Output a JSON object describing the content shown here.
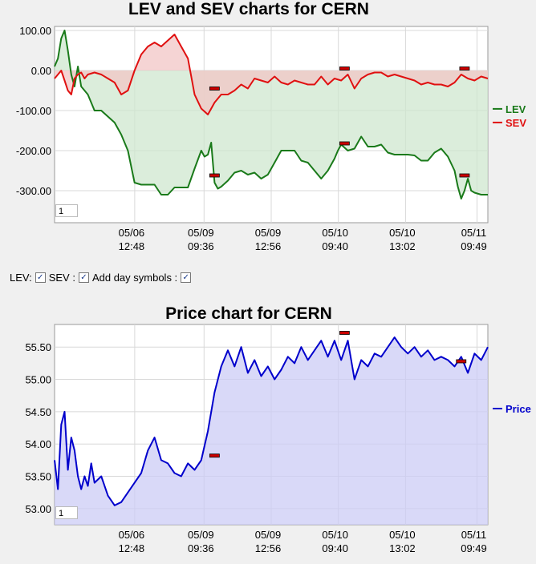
{
  "chart_data": [
    {
      "type": "area",
      "title": "LEV and SEV charts for CERN",
      "yticks": [
        "100.00",
        "0.00",
        "-100.00",
        "-200.00",
        "-300.00"
      ],
      "ylim": [
        -380,
        110
      ],
      "xticks": [
        {
          "date": "05/06",
          "time": "12:48"
        },
        {
          "date": "05/09",
          "time": "09:36"
        },
        {
          "date": "05/09",
          "time": "12:56"
        },
        {
          "date": "05/10",
          "time": "09:40"
        },
        {
          "date": "05/10",
          "time": "13:02"
        },
        {
          "date": "05/11",
          "time": "09:49"
        }
      ],
      "legend_position": "right",
      "series": [
        {
          "name": "LEV",
          "color": "#1a7a1a",
          "fill": "#cfe7cf",
          "points": [
            [
              0,
              10
            ],
            [
              1,
              30
            ],
            [
              2,
              80
            ],
            [
              3,
              100
            ],
            [
              4,
              50
            ],
            [
              5,
              -10
            ],
            [
              6,
              -40
            ],
            [
              7,
              10
            ],
            [
              8,
              -40
            ],
            [
              9,
              -50
            ],
            [
              10,
              -60
            ],
            [
              12,
              -100
            ],
            [
              14,
              -100
            ],
            [
              16,
              -115
            ],
            [
              18,
              -130
            ],
            [
              20,
              -160
            ],
            [
              22,
              -200
            ],
            [
              24,
              -280
            ],
            [
              26,
              -285
            ],
            [
              28,
              -285
            ],
            [
              30,
              -285
            ],
            [
              32,
              -310
            ],
            [
              34,
              -310
            ],
            [
              36,
              -292
            ],
            [
              38,
              -292
            ],
            [
              40,
              -292
            ],
            [
              42,
              -245
            ],
            [
              44,
              -200
            ],
            [
              45,
              -215
            ],
            [
              46,
              -210
            ],
            [
              47,
              -180
            ],
            [
              48,
              -280
            ],
            [
              49,
              -295
            ],
            [
              50,
              -290
            ],
            [
              52,
              -275
            ],
            [
              54,
              -255
            ],
            [
              56,
              -250
            ],
            [
              58,
              -260
            ],
            [
              60,
              -255
            ],
            [
              62,
              -270
            ],
            [
              64,
              -260
            ],
            [
              66,
              -230
            ],
            [
              68,
              -200
            ],
            [
              70,
              -200
            ],
            [
              72,
              -200
            ],
            [
              74,
              -225
            ],
            [
              76,
              -230
            ],
            [
              78,
              -250
            ],
            [
              80,
              -270
            ],
            [
              82,
              -250
            ],
            [
              84,
              -220
            ],
            [
              85,
              -200
            ],
            [
              86,
              -185
            ],
            [
              88,
              -200
            ],
            [
              90,
              -195
            ],
            [
              92,
              -165
            ],
            [
              94,
              -190
            ],
            [
              96,
              -190
            ],
            [
              98,
              -185
            ],
            [
              100,
              -205
            ],
            [
              102,
              -210
            ],
            [
              104,
              -210
            ],
            [
              106,
              -210
            ],
            [
              108,
              -212
            ],
            [
              110,
              -225
            ],
            [
              112,
              -225
            ],
            [
              114,
              -205
            ],
            [
              116,
              -195
            ],
            [
              118,
              -215
            ],
            [
              120,
              -250
            ],
            [
              121,
              -290
            ],
            [
              122,
              -320
            ],
            [
              123,
              -300
            ],
            [
              124,
              -270
            ],
            [
              125,
              -300
            ],
            [
              126,
              -305
            ],
            [
              128,
              -310
            ],
            [
              130,
              -310
            ]
          ]
        },
        {
          "name": "SEV",
          "color": "#e01010",
          "fill": "#f2c6c6",
          "points": [
            [
              0,
              -20
            ],
            [
              1,
              -10
            ],
            [
              2,
              0
            ],
            [
              3,
              -25
            ],
            [
              4,
              -50
            ],
            [
              5,
              -60
            ],
            [
              6,
              -20
            ],
            [
              7,
              -10
            ],
            [
              8,
              -5
            ],
            [
              9,
              -20
            ],
            [
              10,
              -10
            ],
            [
              12,
              -5
            ],
            [
              14,
              -10
            ],
            [
              16,
              -20
            ],
            [
              18,
              -30
            ],
            [
              20,
              -60
            ],
            [
              22,
              -50
            ],
            [
              24,
              0
            ],
            [
              26,
              40
            ],
            [
              28,
              60
            ],
            [
              30,
              70
            ],
            [
              32,
              60
            ],
            [
              34,
              75
            ],
            [
              36,
              90
            ],
            [
              38,
              60
            ],
            [
              40,
              30
            ],
            [
              42,
              -60
            ],
            [
              44,
              -95
            ],
            [
              46,
              -110
            ],
            [
              48,
              -80
            ],
            [
              50,
              -60
            ],
            [
              52,
              -60
            ],
            [
              54,
              -50
            ],
            [
              56,
              -35
            ],
            [
              58,
              -45
            ],
            [
              60,
              -20
            ],
            [
              62,
              -25
            ],
            [
              64,
              -30
            ],
            [
              66,
              -15
            ],
            [
              68,
              -30
            ],
            [
              70,
              -35
            ],
            [
              72,
              -25
            ],
            [
              74,
              -30
            ],
            [
              76,
              -35
            ],
            [
              78,
              -35
            ],
            [
              80,
              -15
            ],
            [
              82,
              -35
            ],
            [
              84,
              -20
            ],
            [
              86,
              -25
            ],
            [
              88,
              -10
            ],
            [
              90,
              -45
            ],
            [
              92,
              -20
            ],
            [
              94,
              -10
            ],
            [
              96,
              -5
            ],
            [
              98,
              -5
            ],
            [
              100,
              -15
            ],
            [
              102,
              -10
            ],
            [
              104,
              -15
            ],
            [
              106,
              -20
            ],
            [
              108,
              -25
            ],
            [
              110,
              -35
            ],
            [
              112,
              -30
            ],
            [
              114,
              -35
            ],
            [
              116,
              -35
            ],
            [
              118,
              -40
            ],
            [
              120,
              -30
            ],
            [
              122,
              -10
            ],
            [
              124,
              -20
            ],
            [
              126,
              -25
            ],
            [
              128,
              -15
            ],
            [
              130,
              -20
            ]
          ]
        }
      ],
      "day_markers": [
        [
          48,
          -45
        ],
        [
          48,
          -262
        ],
        [
          87,
          5
        ],
        [
          87,
          -182
        ],
        [
          123,
          5
        ],
        [
          123,
          -262
        ]
      ]
    },
    {
      "type": "area",
      "title": "Price chart for CERN",
      "yticks": [
        "55.50",
        "55.00",
        "54.50",
        "54.00",
        "53.50",
        "53.00"
      ],
      "ylim": [
        52.75,
        55.85
      ],
      "xticks": [
        {
          "date": "05/06",
          "time": "12:48"
        },
        {
          "date": "05/09",
          "time": "09:36"
        },
        {
          "date": "05/09",
          "time": "12:56"
        },
        {
          "date": "05/10",
          "time": "09:40"
        },
        {
          "date": "05/10",
          "time": "13:02"
        },
        {
          "date": "05/11",
          "time": "09:49"
        }
      ],
      "legend_position": "right",
      "series": [
        {
          "name": "Price",
          "color": "#0000cc",
          "fill": "#ccccf5",
          "points": [
            [
              0,
              53.75
            ],
            [
              1,
              53.3
            ],
            [
              2,
              54.3
            ],
            [
              3,
              54.5
            ],
            [
              4,
              53.6
            ],
            [
              5,
              54.1
            ],
            [
              6,
              53.9
            ],
            [
              7,
              53.5
            ],
            [
              8,
              53.3
            ],
            [
              9,
              53.5
            ],
            [
              10,
              53.35
            ],
            [
              11,
              53.7
            ],
            [
              12,
              53.4
            ],
            [
              14,
              53.5
            ],
            [
              16,
              53.2
            ],
            [
              18,
              53.05
            ],
            [
              20,
              53.1
            ],
            [
              22,
              53.25
            ],
            [
              24,
              53.4
            ],
            [
              26,
              53.55
            ],
            [
              28,
              53.9
            ],
            [
              30,
              54.1
            ],
            [
              32,
              53.75
            ],
            [
              34,
              53.7
            ],
            [
              36,
              53.55
            ],
            [
              38,
              53.5
            ],
            [
              40,
              53.7
            ],
            [
              42,
              53.6
            ],
            [
              44,
              53.75
            ],
            [
              46,
              54.2
            ],
            [
              48,
              54.8
            ],
            [
              50,
              55.2
            ],
            [
              52,
              55.45
            ],
            [
              54,
              55.2
            ],
            [
              56,
              55.5
            ],
            [
              58,
              55.1
            ],
            [
              60,
              55.3
            ],
            [
              62,
              55.05
            ],
            [
              64,
              55.2
            ],
            [
              66,
              55.0
            ],
            [
              68,
              55.15
            ],
            [
              70,
              55.35
            ],
            [
              72,
              55.25
            ],
            [
              74,
              55.5
            ],
            [
              76,
              55.3
            ],
            [
              78,
              55.45
            ],
            [
              80,
              55.6
            ],
            [
              82,
              55.35
            ],
            [
              84,
              55.6
            ],
            [
              86,
              55.3
            ],
            [
              88,
              55.6
            ],
            [
              90,
              55.0
            ],
            [
              92,
              55.3
            ],
            [
              94,
              55.2
            ],
            [
              96,
              55.4
            ],
            [
              98,
              55.35
            ],
            [
              100,
              55.5
            ],
            [
              102,
              55.65
            ],
            [
              104,
              55.5
            ],
            [
              106,
              55.4
            ],
            [
              108,
              55.5
            ],
            [
              110,
              55.35
            ],
            [
              112,
              55.45
            ],
            [
              114,
              55.3
            ],
            [
              116,
              55.35
            ],
            [
              118,
              55.3
            ],
            [
              120,
              55.2
            ],
            [
              122,
              55.35
            ],
            [
              124,
              55.1
            ],
            [
              126,
              55.4
            ],
            [
              128,
              55.3
            ],
            [
              130,
              55.5
            ]
          ]
        }
      ],
      "day_markers": [
        [
          48,
          53.82
        ],
        [
          87,
          55.72
        ],
        [
          122,
          55.28
        ]
      ]
    }
  ],
  "controls": {
    "lev_label": "LEV:",
    "sev_label": "SEV :",
    "day_symbols_label": "Add day symbols :"
  },
  "zoom_boxes": [
    "1",
    "1"
  ]
}
